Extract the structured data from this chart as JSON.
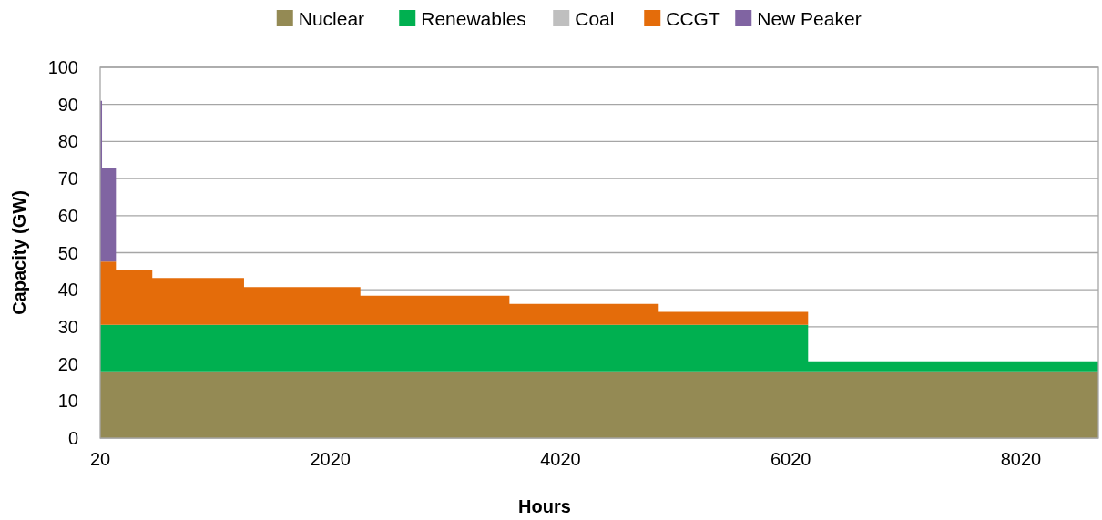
{
  "chart_data": {
    "type": "area",
    "stacked": true,
    "xlabel": "Hours",
    "ylabel": "Capacity (GW)",
    "x": [
      20,
      36,
      36,
      157,
      157,
      473,
      473,
      1270,
      1270,
      2281,
      2281,
      3576,
      3576,
      4873,
      4873,
      6171,
      6171,
      8693
    ],
    "series": [
      {
        "name": "Nuclear",
        "color": "#948a54",
        "values": [
          18,
          18,
          18,
          18,
          18,
          18,
          18,
          18,
          18,
          18,
          18,
          18,
          18,
          18,
          18,
          18,
          18,
          18
        ]
      },
      {
        "name": "Renewables",
        "color": "#00b050",
        "values": [
          12.5,
          12.5,
          12.5,
          12.5,
          12.5,
          12.5,
          12.5,
          12.5,
          12.5,
          12.5,
          12.5,
          12.5,
          12.5,
          12.5,
          12.5,
          12.5,
          2.7,
          2.7
        ]
      },
      {
        "name": "Coal",
        "color": "#bfbfbf",
        "values": [
          null,
          null,
          null,
          null,
          null,
          null,
          null,
          null,
          null,
          null,
          null,
          null,
          null,
          null,
          null,
          null,
          null,
          null
        ]
      },
      {
        "name": "CCGT",
        "color": "#e46c0a",
        "values": [
          17.1,
          17.1,
          17.1,
          17.1,
          14.8,
          14.8,
          12.7,
          12.7,
          10.2,
          10.2,
          7.9,
          7.9,
          5.7,
          5.7,
          3.5,
          3.5,
          0,
          0
        ]
      },
      {
        "name": "New Peaker",
        "color": "#8064a2",
        "values": [
          43.4,
          43.4,
          25.2,
          25.2,
          0,
          0,
          0,
          0,
          0,
          0,
          0,
          0,
          0,
          0,
          0,
          0,
          0,
          0
        ]
      }
    ],
    "xlim": [
      20,
      8693
    ],
    "xticks": [
      20,
      2020,
      4020,
      6020,
      8020
    ],
    "ylim": [
      0,
      100
    ],
    "yticks": [
      0,
      10,
      20,
      30,
      40,
      50,
      60,
      70,
      80,
      90,
      100
    ],
    "grid": "y",
    "legend": "top"
  }
}
